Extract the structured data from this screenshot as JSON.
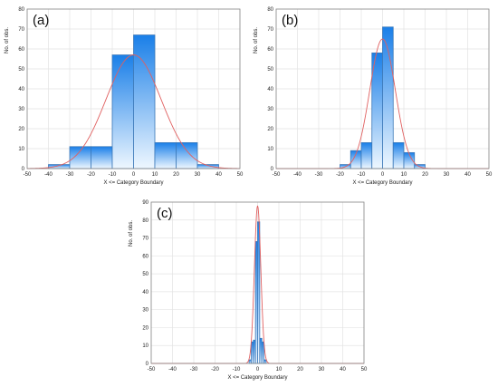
{
  "colors": {
    "bar_top": "#1a7fe8",
    "bar_bottom": "#eef7ff",
    "bar_stroke": "#3b78b8",
    "curve": "#e06060",
    "grid": "#e3e3e3",
    "frame": "#888888"
  },
  "chart_data": [
    {
      "type": "bar",
      "panel_label": "(a)",
      "xlabel": "X <= Category Boundary",
      "ylabel": "No. of obs.",
      "xlim": [
        -50,
        50
      ],
      "ylim": [
        0,
        80
      ],
      "xticks": [
        -50,
        -40,
        -30,
        -20,
        -10,
        0,
        10,
        20,
        30,
        40,
        50
      ],
      "yticks": [
        0,
        10,
        20,
        30,
        40,
        50,
        60,
        70,
        80
      ],
      "grid": true,
      "bins": [
        {
          "from": -40,
          "to": -30,
          "count": 2
        },
        {
          "from": -30,
          "to": -20,
          "count": 11
        },
        {
          "from": -20,
          "to": -10,
          "count": 11
        },
        {
          "from": -10,
          "to": 0,
          "count": 57
        },
        {
          "from": 0,
          "to": 10,
          "count": 67
        },
        {
          "from": 10,
          "to": 20,
          "count": 13
        },
        {
          "from": 20,
          "to": 30,
          "count": 13
        },
        {
          "from": 30,
          "to": 40,
          "count": 2
        }
      ],
      "normal_fit": {
        "mean": 0,
        "sd": 13,
        "peak": 57
      }
    },
    {
      "type": "bar",
      "panel_label": "(b)",
      "xlabel": "X <= Category Boundary",
      "ylabel": "No. of obs.",
      "xlim": [
        -50,
        50
      ],
      "ylim": [
        0,
        80
      ],
      "xticks": [
        -50,
        -40,
        -30,
        -20,
        -10,
        0,
        10,
        20,
        30,
        40,
        50
      ],
      "yticks": [
        0,
        10,
        20,
        30,
        40,
        50,
        60,
        70,
        80
      ],
      "grid": true,
      "bins": [
        {
          "from": -20,
          "to": -15,
          "count": 2
        },
        {
          "from": -15,
          "to": -10,
          "count": 9
        },
        {
          "from": -10,
          "to": -5,
          "count": 13
        },
        {
          "from": -5,
          "to": 0,
          "count": 58
        },
        {
          "from": 0,
          "to": 5,
          "count": 71
        },
        {
          "from": 5,
          "to": 10,
          "count": 13
        },
        {
          "from": 10,
          "to": 15,
          "count": 8
        },
        {
          "from": 15,
          "to": 20,
          "count": 2
        }
      ],
      "normal_fit": {
        "mean": 0,
        "sd": 6,
        "peak": 65
      }
    },
    {
      "type": "bar",
      "panel_label": "(c)",
      "xlabel": "X <= Category Boundary",
      "ylabel": "No. of obs.",
      "xlim": [
        -50,
        50
      ],
      "ylim": [
        0,
        90
      ],
      "xticks": [
        -50,
        -40,
        -30,
        -20,
        -10,
        0,
        10,
        20,
        30,
        40,
        50
      ],
      "yticks": [
        0,
        10,
        20,
        30,
        40,
        50,
        60,
        70,
        80,
        90
      ],
      "grid": true,
      "bins": [
        {
          "from": -4,
          "to": -3,
          "count": 2
        },
        {
          "from": -3,
          "to": -2,
          "count": 12
        },
        {
          "from": -2,
          "to": -1,
          "count": 13
        },
        {
          "from": -1,
          "to": 0,
          "count": 68
        },
        {
          "from": 0,
          "to": 1,
          "count": 79
        },
        {
          "from": 1,
          "to": 2,
          "count": 14
        },
        {
          "from": 2,
          "to": 3,
          "count": 12
        },
        {
          "from": 3,
          "to": 4,
          "count": 2
        }
      ],
      "normal_fit": {
        "mean": 0,
        "sd": 1.5,
        "peak": 88
      }
    }
  ]
}
